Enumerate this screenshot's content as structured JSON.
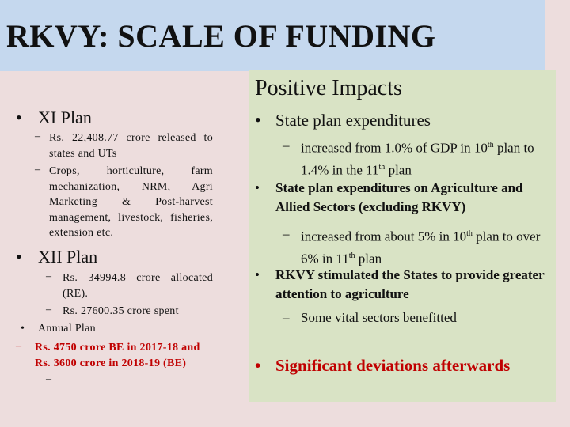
{
  "title": "RKVY: SCALE OF FUNDING",
  "left": {
    "xi_plan": {
      "heading": "XI Plan",
      "items": [
        "Rs. 22,408.77 crore released to states and UTs",
        "Crops, horticulture, farm mechanization, NRM, Agri Marketing & Post-harvest management, livestock, fisheries, extension etc."
      ]
    },
    "xii_plan": {
      "heading": "XII Plan",
      "items": [
        "Rs. 34994.8 crore allocated (RE).",
        "Rs. 27600.35 crore spent"
      ],
      "annual_bullet": "Annual Plan",
      "annual_item": "Rs. 4750 crore BE in 2017-18 and Rs. 3600 crore in 2018-19 (BE)",
      "empty_dash": "–"
    }
  },
  "right": {
    "heading": "Positive Impacts",
    "b1": {
      "title": "State plan expenditures",
      "sub": "increased from 1.0% of GDP in 10th plan to 1.4% in the 11th plan"
    },
    "b2": {
      "title": "State plan expenditures on Agriculture and Allied Sectors (excluding RKVY)",
      "sub": "increased from about 5% in 10th plan to over 6% in 11th plan"
    },
    "b3": {
      "title": "RKVY stimulated the States to provide greater attention to agriculture",
      "sub": "Some vital sectors benefitted"
    },
    "b4": "Significant deviations afterwards"
  },
  "colors": {
    "background": "#eddddd",
    "title_band": "#c5d8ee",
    "right_panel": "#d9e3c5",
    "accent_red": "#c00000"
  }
}
